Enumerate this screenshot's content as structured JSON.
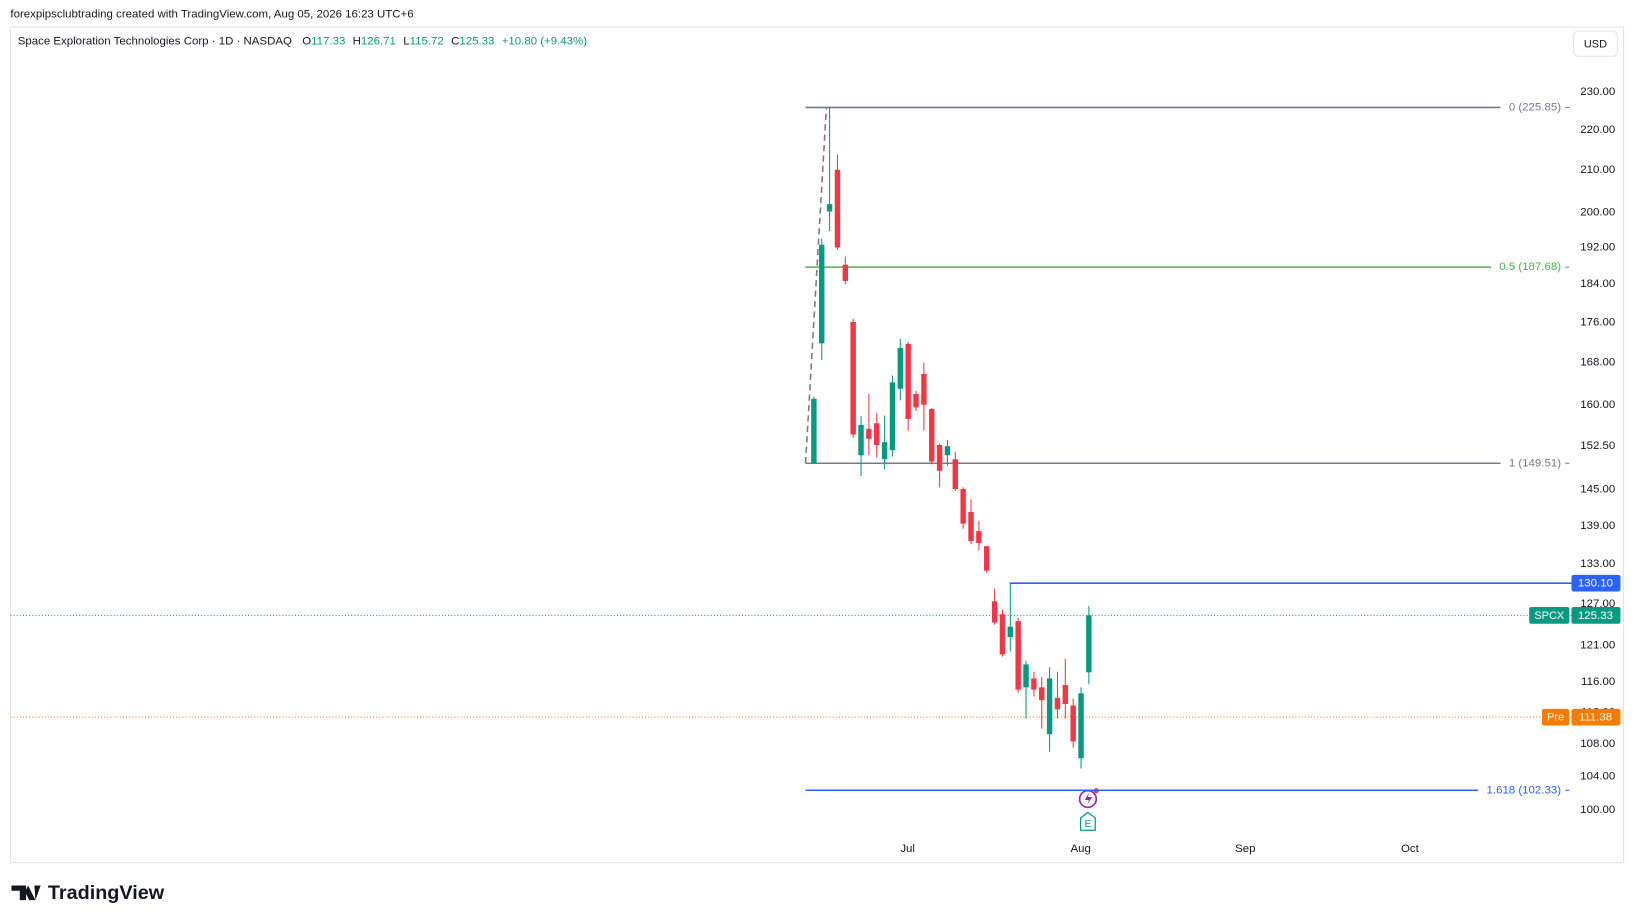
{
  "page": {
    "credit": "forexpipsclubtrading created with TradingView.com, Aug 05, 2026 16:23 UTC+6",
    "brand": "TradingView",
    "currency": "USD"
  },
  "chart_data": {
    "type": "candlestick",
    "title": "Space Exploration Technologies Corp · 1D · NASDAQ",
    "header_values": [
      {
        "prefix": "O",
        "text": "117.33"
      },
      {
        "prefix": "H",
        "text": "126.71"
      },
      {
        "prefix": "L",
        "text": "115.72"
      },
      {
        "prefix": "C",
        "text": "125.33"
      },
      {
        "prefix": null,
        "text": "+10.80 (+9.43%)"
      }
    ],
    "log_scale": true,
    "up_color": "#089981",
    "down_color": "#f23645",
    "open": [
      149.5,
      171.8,
      200.2,
      210.1,
      188.2,
      176.1,
      150.9,
      155.6,
      156.6,
      150.2,
      151.8,
      163.0,
      171.7,
      162.0,
      165.8,
      159.2,
      152.7,
      150.9,
      150.2,
      145.1,
      141.3,
      138.2,
      135.8,
      127.4,
      125.5,
      122.2,
      124.5,
      115.3,
      116.5,
      115.3,
      109.2,
      113.9,
      115.6,
      112.9,
      106.2,
      117.33
    ],
    "high": [
      161.5,
      194.0,
      225.85,
      213.9,
      190.0,
      176.8,
      157.9,
      162.0,
      158.5,
      158.0,
      165.5,
      172.7,
      172.1,
      162.6,
      168.0,
      159.4,
      153.0,
      153.6,
      151.5,
      145.4,
      143.4,
      139.8,
      135.8,
      129.3,
      126.2,
      130.1,
      125.0,
      118.9,
      117.4,
      116.7,
      118.0,
      117.4,
      119.2,
      113.8,
      115.3,
      126.71
    ],
    "low": [
      149.5,
      168.5,
      195.7,
      191.5,
      184.0,
      154.0,
      147.3,
      150.9,
      150.5,
      148.5,
      150.7,
      160.8,
      155.3,
      158.8,
      155.3,
      149.3,
      145.4,
      149.0,
      144.8,
      138.6,
      136.1,
      135.1,
      131.7,
      124.0,
      119.5,
      120.2,
      114.6,
      111.2,
      114.1,
      109.9,
      107.0,
      111.2,
      111.2,
      107.5,
      104.95,
      115.72
    ],
    "close": [
      161.1,
      192.6,
      201.9,
      192.0,
      184.7,
      154.6,
      156.3,
      153.8,
      152.7,
      153.2,
      164.2,
      170.9,
      157.4,
      159.5,
      160.0,
      149.8,
      148.2,
      152.5,
      145.1,
      139.4,
      136.6,
      136.3,
      132.0,
      124.3,
      119.8,
      123.7,
      115.0,
      118.4,
      115.0,
      113.6,
      116.5,
      112.4,
      113.1,
      108.3,
      114.5,
      125.33
    ],
    "ylim": [
      94.1,
      247.9
    ],
    "yticks": [
      {
        "value": 230,
        "label": "230.00"
      },
      {
        "value": 220,
        "label": "220.00"
      },
      {
        "value": 210,
        "label": "210.00"
      },
      {
        "value": 200,
        "label": "200.00"
      },
      {
        "value": 192,
        "label": "192.00"
      },
      {
        "value": 184,
        "label": "184.00"
      },
      {
        "value": 176,
        "label": "176.00"
      },
      {
        "value": 168,
        "label": "168.00"
      },
      {
        "value": 160,
        "label": "160.00"
      },
      {
        "value": 152.5,
        "label": "152.50"
      },
      {
        "value": 145,
        "label": "145.00"
      },
      {
        "value": 139,
        "label": "139.00"
      },
      {
        "value": 133,
        "label": "133.00"
      },
      {
        "value": 127,
        "label": "127.00"
      },
      {
        "value": 121,
        "label": "121.00"
      },
      {
        "value": 116,
        "label": "116.00"
      },
      {
        "value": 112,
        "label": "112.00"
      },
      {
        "value": 108,
        "label": "108.00"
      },
      {
        "value": 104,
        "label": "104.00"
      },
      {
        "value": 100,
        "label": "100.00"
      }
    ],
    "xlabels": [
      "Jul",
      "Aug",
      "Sep",
      "Oct"
    ],
    "fib_levels": [
      {
        "value": 225.85,
        "label": "0 (225.85)",
        "color": "#787b86"
      },
      {
        "value": 187.68,
        "label": "0.5 (187.68)",
        "color": "#4caf50"
      },
      {
        "value": 149.51,
        "label": "1 (149.51)",
        "color": "#787b86"
      },
      {
        "value": 102.33,
        "label": "1.618 (102.33)",
        "color": "#2962ff"
      }
    ],
    "price_lines": [
      {
        "symbol": null,
        "value": 130.1,
        "label": "130.10",
        "color": "#2962ff"
      },
      {
        "symbol": "SPCX",
        "value": 125.33,
        "label": "125.33",
        "color": "#089981"
      },
      {
        "symbol": "Pre",
        "value": 111.38,
        "label": "111.38",
        "color": "#f57c00"
      }
    ]
  }
}
